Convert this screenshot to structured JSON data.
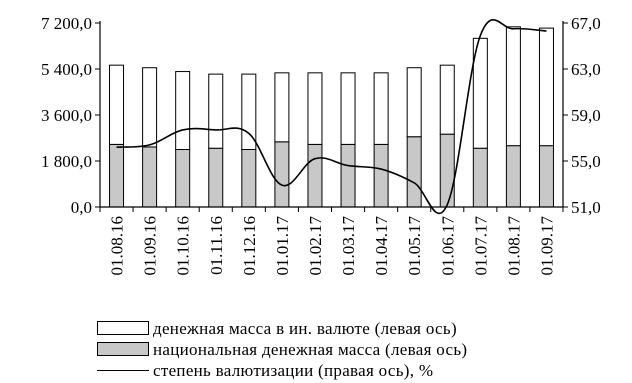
{
  "chart_data": {
    "type": "bar+line",
    "categories": [
      "01.08.16",
      "01.09.16",
      "01.10.16",
      "01.11.16",
      "01.12.16",
      "01.01.17",
      "01.02.17",
      "01.03.17",
      "01.04.17",
      "01.05.17",
      "01.06.17",
      "01.07.17",
      "01.08.17",
      "01.09.17"
    ],
    "left_axis": {
      "ylim": [
        0,
        7200
      ],
      "ticks": [
        0,
        1800,
        3600,
        5400,
        7200
      ],
      "tick_labels": [
        "0,0",
        "1 800,0",
        "3 600,0",
        "5 400,0",
        "7 200,0"
      ]
    },
    "right_axis": {
      "ylim": [
        51,
        67
      ],
      "ticks": [
        51,
        55,
        59,
        63,
        67
      ],
      "tick_labels": [
        "51,0",
        "55,0",
        "59,0",
        "63,0",
        "67,0"
      ]
    },
    "series": [
      {
        "name": "национальная денежная масса (левая ось)",
        "kind": "stacked-bar",
        "axis": "left",
        "color": "#c8c8c8",
        "values": [
          2450,
          2350,
          2250,
          2300,
          2250,
          2550,
          2450,
          2450,
          2450,
          2750,
          2850,
          2300,
          2400,
          2400
        ]
      },
      {
        "name": "денежная масса в ин. валюте (левая ось)",
        "kind": "stacked-bar",
        "axis": "left",
        "color": "#ffffff",
        "values": [
          3100,
          3100,
          3050,
          2900,
          2950,
          2700,
          2800,
          2800,
          2800,
          2700,
          2700,
          4300,
          4650,
          4600
        ]
      },
      {
        "name": "степень валютизации (правая ось), %",
        "kind": "line",
        "axis": "right",
        "color": "#000000",
        "values": [
          56.2,
          56.4,
          57.7,
          57.7,
          57.4,
          52.9,
          55.2,
          54.6,
          54.3,
          53.1,
          51.2,
          65.9,
          66.5,
          66.3
        ]
      }
    ]
  }
}
